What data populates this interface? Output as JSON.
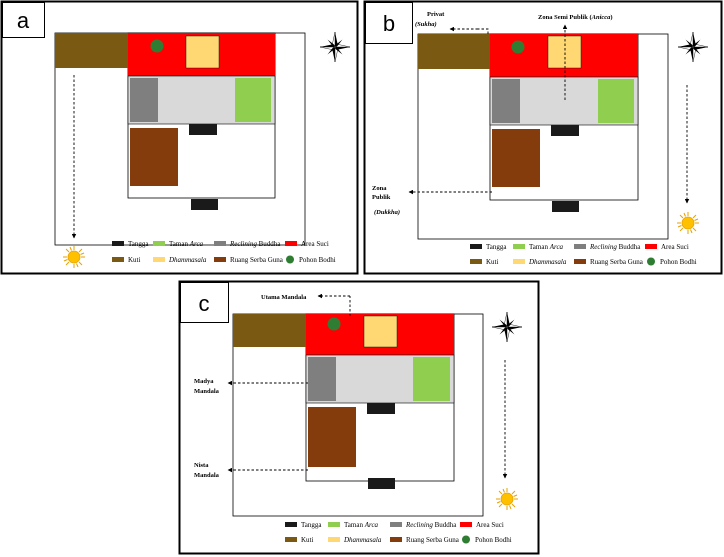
{
  "panels": {
    "a": {
      "label": "a"
    },
    "b": {
      "label": "b"
    },
    "c": {
      "label": "c"
    }
  },
  "legend": {
    "tangga": "Tangga",
    "taman_prefix": "Taman ",
    "taman_italic": "Arca",
    "reclining_italic": "Reclining",
    "reclining_suffix": " Buddha",
    "area_suci": "Area Suci",
    "kuti": "Kuti",
    "dhammasala": "Dhammasala",
    "ruang": "Ruang Serba Guna",
    "pohon": "Pohon Bodhi"
  },
  "zones_b": {
    "privat_line1": "Privat",
    "privat_line2": "(Sukha)",
    "semi_prefix": "Zona Semi Publik (",
    "semi_italic": "Anicca",
    "semi_suffix": ")",
    "publik_line1": "Zona",
    "publik_line2": "Publik",
    "publik_line3": "(Dukkha)"
  },
  "zones_c": {
    "utama": "Utama Mandala",
    "madya_line1": "Madya",
    "madya_line2": "Mandala",
    "nista_line1": "Nista",
    "nista_line2": "Mandala"
  },
  "colors": {
    "tangga": "#1a1a1a",
    "taman_arca": "#8fce4e",
    "reclining": "#7f7f7f",
    "area_suci": "#ff0000",
    "kuti": "#7a5a12",
    "dhammasala": "#ffd874",
    "ruang": "#843c0c",
    "pohon": "#2e7d32",
    "middle_block": "#d9d9d9",
    "sun": "#ffc000"
  },
  "icons": [
    "compass-rose-icon",
    "sun-icon"
  ]
}
